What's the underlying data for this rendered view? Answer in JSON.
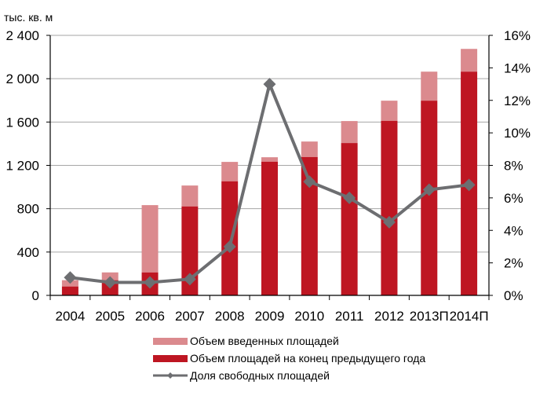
{
  "chart_data": {
    "type": "bar",
    "stacked": true,
    "title": "",
    "ylabel": "тыс. кв. м",
    "y2label": "",
    "xlabel": "",
    "categories": [
      "2004",
      "2005",
      "2006",
      "2007",
      "2008",
      "2009",
      "2010",
      "2011",
      "2012",
      "2013П",
      "2014П"
    ],
    "series": [
      {
        "name": "Объем площадей на конец предыдущего года",
        "type": "bar",
        "axis": "left",
        "color": "#BE1622",
        "values": [
          82,
          140,
          212,
          821,
          1053,
          1234,
          1277,
          1406,
          1611,
          1797,
          2065
        ]
      },
      {
        "name": "Объем введенных площадей",
        "type": "bar",
        "axis": "left",
        "color": "#DB8A8E",
        "values": [
          58,
          72,
          621,
          193,
          179,
          41,
          143,
          203,
          186,
          268,
          210
        ]
      },
      {
        "name": "Доля свободных площадей",
        "type": "line",
        "axis": "right",
        "color": "#6D6E71",
        "unit": "%",
        "values": [
          1.1,
          0.8,
          0.8,
          1.0,
          3.0,
          13.0,
          7.0,
          6.0,
          4.5,
          6.5,
          6.8
        ]
      }
    ],
    "ylim": [
      0,
      2400
    ],
    "yticks": [
      "0",
      "400",
      "800",
      "1 200",
      "1 600",
      "2 000",
      "2 400"
    ],
    "y2lim": [
      0,
      16
    ],
    "y2ticks": [
      "0%",
      "2%",
      "4%",
      "6%",
      "8%",
      "10%",
      "12%",
      "14%",
      "16%"
    ],
    "grid": true,
    "legend_position": "bottom"
  },
  "unit_label": "тыс. кв. м",
  "legend": [
    {
      "label": "Объем введенных площадей",
      "color": "#DB8A8E",
      "kind": "bar"
    },
    {
      "label": "Объем площадей на конец предыдущего года",
      "color": "#BE1622",
      "kind": "bar"
    },
    {
      "label": "Доля свободных площадей",
      "color": "#6D6E71",
      "kind": "line"
    }
  ]
}
